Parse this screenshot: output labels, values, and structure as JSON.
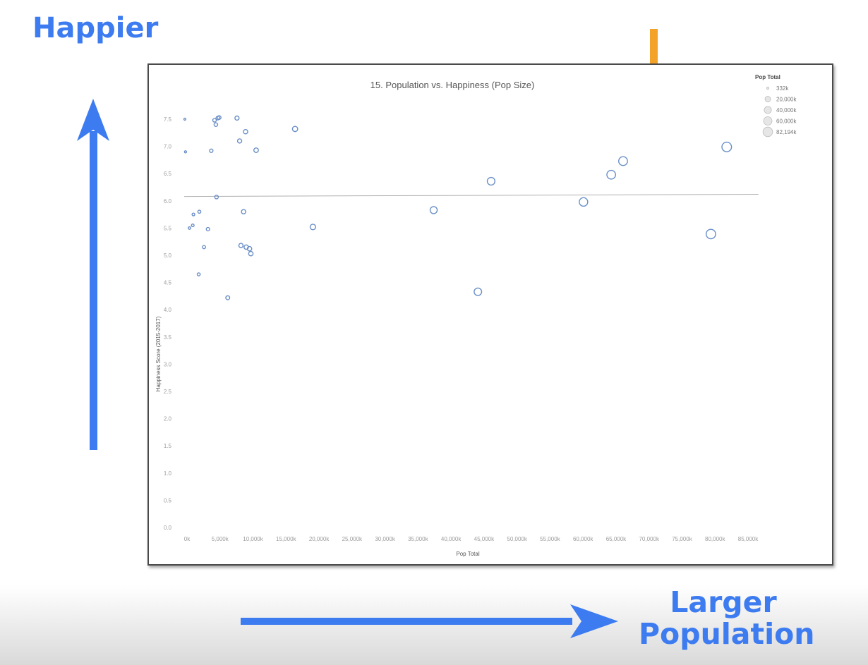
{
  "overlay": {
    "top_label": "Happier",
    "bottom_label_line1": "Larger",
    "bottom_label_line2": "Population",
    "colors": {
      "blue_arrow": "#3d7bf0",
      "orange_arrow": "#f3a32a"
    }
  },
  "chart_data": {
    "type": "scatter",
    "title": "15. Population vs. Happiness (Pop Size)",
    "xlabel": "Pop Total",
    "ylabel": "Happiness Score (2015-2017)",
    "xlim": [
      0,
      85000
    ],
    "ylim": [
      0,
      7.5
    ],
    "x_ticks": [
      "0k",
      "5,000k",
      "10,000k",
      "15,000k",
      "20,000k",
      "25,000k",
      "30,000k",
      "35,000k",
      "40,000k",
      "45,000k",
      "50,000k",
      "55,000k",
      "60,000k",
      "65,000k",
      "70,000k",
      "75,000k",
      "80,000k",
      "85,000k"
    ],
    "y_ticks": [
      "0.0",
      "0.5",
      "1.0",
      "1.5",
      "2.0",
      "2.5",
      "3.0",
      "3.5",
      "4.0",
      "4.5",
      "5.0",
      "5.5",
      "6.0",
      "6.5",
      "7.0",
      "7.5"
    ],
    "trend_line": {
      "x": [
        0,
        87000
      ],
      "y": [
        6.08,
        6.12
      ]
    },
    "marker_color": "#6a8fc7",
    "size_legend": {
      "title": "Pop Total",
      "entries": [
        {
          "label": "332k",
          "value": 332
        },
        {
          "label": "20,000k",
          "value": 20000
        },
        {
          "label": "40,000k",
          "value": 40000
        },
        {
          "label": "60,000k",
          "value": 60000
        },
        {
          "label": "82,194k",
          "value": 82194
        }
      ]
    },
    "points": [
      {
        "x": 100,
        "y": 7.5
      },
      {
        "x": 200,
        "y": 6.9
      },
      {
        "x": 800,
        "y": 5.5
      },
      {
        "x": 1400,
        "y": 5.75
      },
      {
        "x": 1300,
        "y": 5.55
      },
      {
        "x": 2300,
        "y": 5.8
      },
      {
        "x": 2200,
        "y": 4.65
      },
      {
        "x": 3000,
        "y": 5.15
      },
      {
        "x": 3600,
        "y": 5.48
      },
      {
        "x": 4100,
        "y": 6.92
      },
      {
        "x": 4600,
        "y": 7.48
      },
      {
        "x": 4800,
        "y": 7.4
      },
      {
        "x": 5100,
        "y": 7.52
      },
      {
        "x": 5300,
        "y": 7.53
      },
      {
        "x": 4900,
        "y": 6.07
      },
      {
        "x": 6600,
        "y": 4.22
      },
      {
        "x": 8000,
        "y": 7.52
      },
      {
        "x": 8400,
        "y": 7.1
      },
      {
        "x": 8600,
        "y": 5.18
      },
      {
        "x": 9000,
        "y": 5.8
      },
      {
        "x": 9300,
        "y": 7.27
      },
      {
        "x": 9400,
        "y": 5.15
      },
      {
        "x": 9900,
        "y": 5.12
      },
      {
        "x": 10100,
        "y": 5.03
      },
      {
        "x": 10900,
        "y": 6.93
      },
      {
        "x": 16800,
        "y": 7.32
      },
      {
        "x": 19500,
        "y": 5.52
      },
      {
        "x": 37800,
        "y": 5.83
      },
      {
        "x": 44500,
        "y": 4.33
      },
      {
        "x": 46500,
        "y": 6.36
      },
      {
        "x": 60500,
        "y": 5.98
      },
      {
        "x": 64700,
        "y": 6.48
      },
      {
        "x": 66500,
        "y": 6.73
      },
      {
        "x": 79800,
        "y": 5.39
      },
      {
        "x": 82200,
        "y": 6.99
      }
    ]
  }
}
